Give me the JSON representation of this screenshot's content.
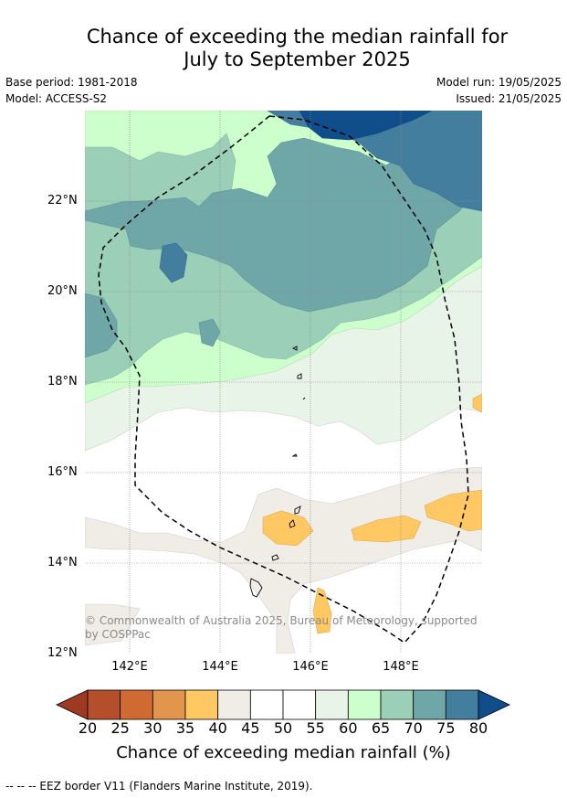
{
  "title_line1": "Chance of exceeding the median rainfall for",
  "title_line2": "July to September 2025",
  "base_period": "Base period: 1981-2018",
  "model": "Model: ACCESS-S2",
  "model_run": "Model run: 19/05/2025",
  "issued": "Issued: 21/05/2025",
  "lat_labels": [
    "22°N",
    "20°N",
    "18°N",
    "16°N",
    "14°N",
    "12°N"
  ],
  "lon_labels": [
    "142°E",
    "144°E",
    "146°E",
    "148°E"
  ],
  "map_extent": {
    "lon_min": 141.0,
    "lon_max": 149.8,
    "lat_min": 12.0,
    "lat_max": 24.0
  },
  "copyright": "© Commonwealth of Australia 2025, Bureau of Meteorology, supported by COSPPac",
  "colorbar": {
    "ticks": [
      "20",
      "25",
      "30",
      "35",
      "40",
      "45",
      "50",
      "55",
      "60",
      "65",
      "70",
      "75",
      "80"
    ],
    "colors": [
      "#9c3a24",
      "#b54e2a",
      "#cf6a33",
      "#e2954c",
      "#ffc862",
      "#f0ece6",
      "#ffffff",
      "#ffffff",
      "#e8f4e8",
      "#ccffcc",
      "#9ccfb8",
      "#6fa6a8",
      "#447e9e",
      "#104e8b"
    ],
    "label": "Chance of exceeding median rainfall (%)"
  },
  "footnote": "--  --  -- EEZ border V11 (Flanders Marine Institute, 2019)."
}
